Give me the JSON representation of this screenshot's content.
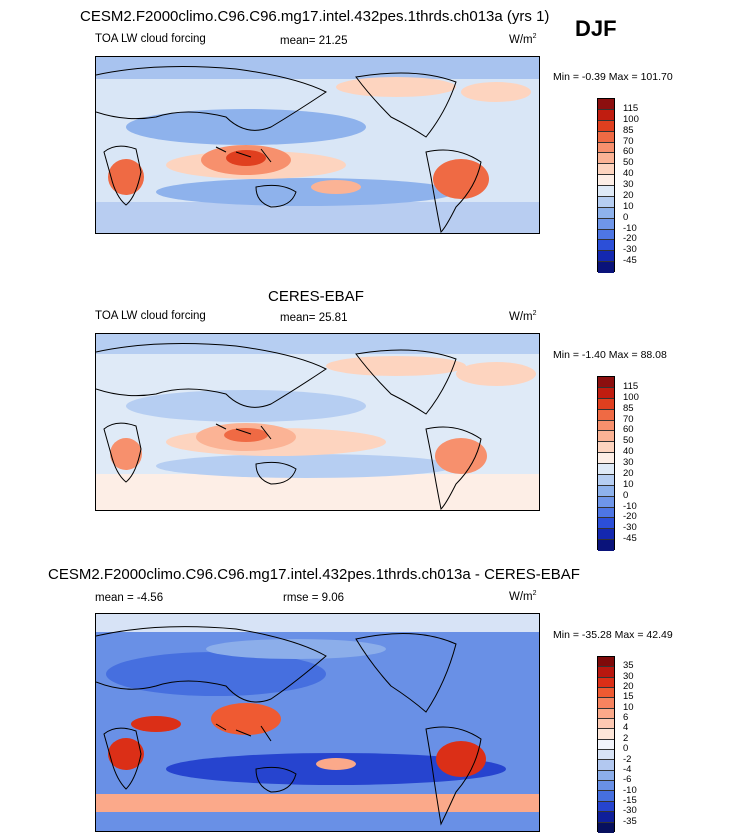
{
  "season": "DJF",
  "panels": [
    {
      "title": "CESM2.F2000climo.C96.C96.mg17.intel.432pes.1thrds.ch013a (yrs 1)",
      "variable": "TOA LW cloud forcing",
      "stat_label": "mean=",
      "stat_value": "21.25",
      "units": "W/m",
      "units_sup": "2",
      "min_label": "Min =",
      "min_value": "-0.39",
      "max_label": "Max =",
      "max_value": "101.70",
      "colorbar_labels": [
        "115",
        "100",
        "85",
        "70",
        "60",
        "50",
        "40",
        "30",
        "20",
        "10",
        "0",
        "-10",
        "-20",
        "-30",
        "-45"
      ],
      "colorbar_colors": [
        "#8c0f0f",
        "#c01d10",
        "#e03f1f",
        "#ef6a44",
        "#f7906d",
        "#fbb395",
        "#fdd4bf",
        "#fdeee6",
        "#dfeaf7",
        "#b6cef2",
        "#8eb2ec",
        "#6f96e9",
        "#4e76e4",
        "#2c4fd8",
        "#1428b0",
        "#0a137a"
      ]
    },
    {
      "title": "CERES-EBAF",
      "variable": "TOA LW cloud forcing",
      "stat_label": "mean=",
      "stat_value": "25.81",
      "units": "W/m",
      "units_sup": "2",
      "min_label": "Min =",
      "min_value": "-1.40",
      "max_label": "Max =",
      "max_value": "88.08",
      "colorbar_labels": [
        "115",
        "100",
        "85",
        "70",
        "60",
        "50",
        "40",
        "30",
        "20",
        "10",
        "0",
        "-10",
        "-20",
        "-30",
        "-45"
      ],
      "colorbar_colors": [
        "#8c0f0f",
        "#c01d10",
        "#e03f1f",
        "#ef6a44",
        "#f7906d",
        "#fbb395",
        "#fdd4bf",
        "#fdeee6",
        "#dfeaf7",
        "#b6cef2",
        "#8eb2ec",
        "#6f96e9",
        "#4e76e4",
        "#2c4fd8",
        "#1428b0",
        "#0a137a"
      ]
    },
    {
      "title": "CESM2.F2000climo.C96.C96.mg17.intel.432pes.1thrds.ch013a - CERES-EBAF",
      "variable": "",
      "mean_label": "mean =",
      "mean_value": "-4.56",
      "stat_label": "rmse =",
      "stat_value": "9.06",
      "units": "W/m",
      "units_sup": "2",
      "min_label": "Min =",
      "min_value": "-35.28",
      "max_label": "Max =",
      "max_value": "42.49",
      "colorbar_labels": [
        "35",
        "30",
        "20",
        "15",
        "10",
        "6",
        "4",
        "2",
        "0",
        "-2",
        "-4",
        "-6",
        "-10",
        "-15",
        "-30",
        "-35"
      ],
      "colorbar_colors": [
        "#7e0a0a",
        "#b8170f",
        "#db2f17",
        "#ef5a32",
        "#f7835f",
        "#fba98a",
        "#fdc9b3",
        "#fde6d9",
        "#f2f4fb",
        "#d7e3f6",
        "#b2c8f0",
        "#8caeea",
        "#6990e6",
        "#466fdf",
        "#2644cf",
        "#0f1f9a",
        "#07105e"
      ]
    }
  ]
}
